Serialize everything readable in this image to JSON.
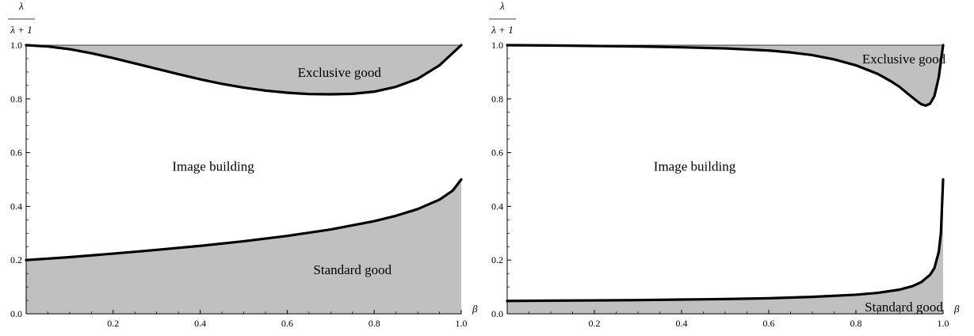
{
  "chart_data": [
    {
      "type": "area",
      "xlabel": "β",
      "ylabel_numerator": "λ",
      "ylabel_denominator": "λ + 1",
      "xlim": [
        0,
        1
      ],
      "ylim": [
        0,
        1
      ],
      "xticks": [
        "0.2",
        "0.4",
        "0.6",
        "0.8",
        "1.0"
      ],
      "yticks": [
        "0.0",
        "0.2",
        "0.4",
        "0.6",
        "0.8",
        "1.0"
      ],
      "region_labels": {
        "top": "Exclusive good",
        "middle": "Image building",
        "bottom": "Standard good"
      },
      "fill_color": "#c0c0c0",
      "line_color": "#000000",
      "series": [
        {
          "region": "upper-boundary",
          "x": [
            0,
            0.05,
            0.1,
            0.15,
            0.2,
            0.25,
            0.3,
            0.35,
            0.4,
            0.45,
            0.5,
            0.55,
            0.6,
            0.65,
            0.7,
            0.75,
            0.8,
            0.85,
            0.9,
            0.95,
            0.97,
            1.0
          ],
          "y": [
            1.0,
            0.995,
            0.985,
            0.97,
            0.952,
            0.932,
            0.912,
            0.892,
            0.873,
            0.856,
            0.842,
            0.831,
            0.823,
            0.818,
            0.817,
            0.819,
            0.827,
            0.845,
            0.875,
            0.925,
            0.955,
            1.0
          ]
        },
        {
          "region": "lower-boundary",
          "x": [
            0,
            0.1,
            0.2,
            0.3,
            0.4,
            0.5,
            0.6,
            0.7,
            0.8,
            0.85,
            0.9,
            0.95,
            0.98,
            1.0
          ],
          "y": [
            0.2,
            0.211,
            0.224,
            0.238,
            0.253,
            0.27,
            0.29,
            0.314,
            0.345,
            0.365,
            0.39,
            0.425,
            0.458,
            0.5
          ]
        }
      ]
    },
    {
      "type": "area",
      "xlabel": "β",
      "ylabel_numerator": "λ",
      "ylabel_denominator": "λ + 1",
      "xlim": [
        0,
        1
      ],
      "ylim": [
        0,
        1
      ],
      "xticks": [
        "0.2",
        "0.4",
        "0.6",
        "0.8",
        "1.0"
      ],
      "yticks": [
        "0.0",
        "0.2",
        "0.4",
        "0.6",
        "0.8",
        "1.0"
      ],
      "region_labels": {
        "top": "Exclusive good",
        "middle": "Image building",
        "bottom": "Standard good"
      },
      "fill_color": "#c0c0c0",
      "line_color": "#000000",
      "series": [
        {
          "region": "upper-boundary",
          "x": [
            0,
            0.1,
            0.2,
            0.3,
            0.4,
            0.5,
            0.6,
            0.65,
            0.7,
            0.75,
            0.8,
            0.85,
            0.88,
            0.9,
            0.92,
            0.94,
            0.95,
            0.96,
            0.97,
            0.98,
            0.99,
            0.995,
            1.0
          ],
          "y": [
            1.0,
            0.999,
            0.997,
            0.995,
            0.992,
            0.988,
            0.98,
            0.973,
            0.963,
            0.947,
            0.925,
            0.893,
            0.866,
            0.845,
            0.818,
            0.792,
            0.78,
            0.775,
            0.782,
            0.81,
            0.88,
            0.94,
            1.0
          ]
        },
        {
          "region": "lower-boundary",
          "x": [
            0,
            0.1,
            0.2,
            0.3,
            0.4,
            0.5,
            0.6,
            0.7,
            0.8,
            0.85,
            0.9,
            0.93,
            0.95,
            0.97,
            0.98,
            0.99,
            0.995,
            1.0
          ],
          "y": [
            0.048,
            0.049,
            0.05,
            0.051,
            0.053,
            0.055,
            0.058,
            0.063,
            0.071,
            0.078,
            0.09,
            0.103,
            0.118,
            0.145,
            0.17,
            0.23,
            0.3,
            0.5
          ]
        }
      ]
    }
  ]
}
